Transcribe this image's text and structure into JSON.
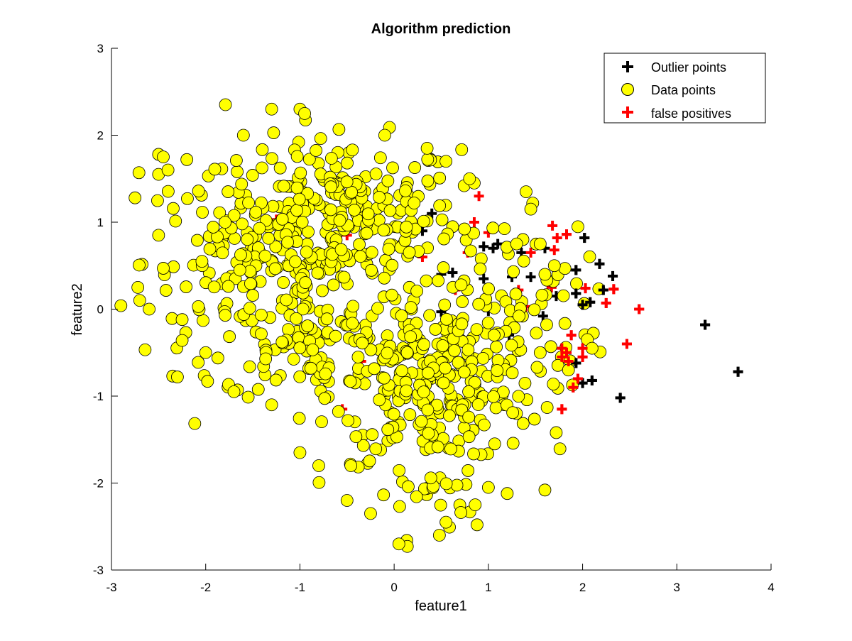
{
  "chart_data": {
    "type": "scatter",
    "title": "Algorithm prediction",
    "xlabel": "feature1",
    "ylabel": "feature2",
    "xlim": [
      -3,
      4
    ],
    "ylim": [
      -3,
      3
    ],
    "xticks": [
      "-3",
      "-2",
      "-1",
      "0",
      "1",
      "2",
      "3",
      "4"
    ],
    "yticks": [
      "-3",
      "-2",
      "-1",
      "0",
      "1",
      "2",
      "3"
    ],
    "grid": false,
    "legend": {
      "placement": "top-right",
      "entries": [
        {
          "name": "Outlier points",
          "marker": "plus",
          "color": "#000000"
        },
        {
          "name": "Data points",
          "marker": "circle",
          "color": "#ffff00"
        },
        {
          "name": "false positives",
          "marker": "plus",
          "color": "#ff0000"
        }
      ]
    },
    "series": [
      {
        "name": "Data points",
        "marker": "circle",
        "color": "#ffff00",
        "edge_color": "#000000",
        "clusters": [
          {
            "center": [
              -0.55,
              1.05
            ],
            "spread": [
              0.62,
              0.45
            ],
            "count": 260
          },
          {
            "center": [
              -1.55,
              0.55
            ],
            "spread": [
              0.55,
              0.55
            ],
            "count": 130
          },
          {
            "center": [
              0.45,
              -0.85
            ],
            "spread": [
              0.55,
              0.45
            ],
            "count": 270
          },
          {
            "center": [
              -0.9,
              -0.35
            ],
            "spread": [
              0.45,
              0.35
            ],
            "count": 90
          },
          {
            "center": [
              1.15,
              0.05
            ],
            "spread": [
              0.5,
              0.5
            ],
            "count": 70
          },
          {
            "center": [
              0.3,
              -1.95
            ],
            "spread": [
              0.35,
              0.35
            ],
            "count": 30
          }
        ],
        "points": [
          [
            -2.9,
            0.04
          ],
          [
            -2.72,
            0.25
          ],
          [
            -2.7,
            0.1
          ],
          [
            -2.6,
            0.0
          ],
          [
            -2.45,
            0.47
          ],
          [
            -2.5,
            0.85
          ],
          [
            -2.5,
            1.55
          ],
          [
            -2.5,
            1.78
          ],
          [
            -2.45,
            1.75
          ],
          [
            -2.4,
            1.6
          ],
          [
            -2.75,
            1.28
          ],
          [
            -2.2,
            1.72
          ],
          [
            -2.35,
            -0.77
          ],
          [
            -2.3,
            -0.78
          ],
          [
            -2.25,
            -0.36
          ],
          [
            -2.25,
            -0.12
          ],
          [
            -2.0,
            -0.5
          ],
          [
            -1.98,
            -0.83
          ],
          [
            -1.3,
            2.3
          ],
          [
            -1.0,
            2.3
          ],
          [
            -0.95,
            2.25
          ],
          [
            -0.1,
            2.0
          ],
          [
            -1.6,
            2.0
          ],
          [
            0.35,
            1.85
          ],
          [
            0.55,
            1.7
          ],
          [
            0.05,
            -2.7
          ],
          [
            0.48,
            -2.6
          ],
          [
            0.55,
            -2.45
          ],
          [
            0.88,
            -2.48
          ],
          [
            0.86,
            -2.25
          ],
          [
            1.0,
            -2.05
          ],
          [
            1.6,
            -2.08
          ],
          [
            1.2,
            -2.12
          ],
          [
            -0.5,
            -2.2
          ],
          [
            -0.25,
            -2.35
          ],
          [
            -0.8,
            -1.8
          ],
          [
            -1.0,
            -1.65
          ],
          [
            -1.3,
            -1.1
          ],
          [
            -1.7,
            -0.95
          ],
          [
            1.72,
            -1.42
          ],
          [
            1.55,
            -0.5
          ],
          [
            1.7,
            0.5
          ],
          [
            2.05,
            -0.35
          ],
          [
            2.1,
            -0.45
          ],
          [
            1.85,
            -0.7
          ],
          [
            1.6,
            0.4
          ],
          [
            1.4,
            1.35
          ],
          [
            1.45,
            1.15
          ],
          [
            1.3,
            0.75
          ],
          [
            1.55,
            0.75
          ],
          [
            0.85,
            1.45
          ],
          [
            0.8,
            1.5
          ]
        ]
      },
      {
        "name": "Outlier points",
        "marker": "plus",
        "color": "#000000",
        "points": [
          [
            3.65,
            -0.72
          ],
          [
            3.3,
            -0.18
          ],
          [
            2.4,
            -1.02
          ],
          [
            2.1,
            -0.82
          ],
          [
            2.0,
            -0.85
          ],
          [
            1.93,
            -0.62
          ],
          [
            2.0,
            0.05
          ],
          [
            2.08,
            0.08
          ],
          [
            2.22,
            0.22
          ],
          [
            2.32,
            0.38
          ],
          [
            2.18,
            0.52
          ],
          [
            1.93,
            0.45
          ],
          [
            2.02,
            0.82
          ],
          [
            1.93,
            0.18
          ],
          [
            1.7,
            0.3
          ],
          [
            1.72,
            0.15
          ],
          [
            1.45,
            0.37
          ],
          [
            1.25,
            0.37
          ],
          [
            1.6,
            0.7
          ],
          [
            1.58,
            -0.08
          ],
          [
            1.35,
            0.65
          ],
          [
            1.05,
            0.7
          ],
          [
            1.1,
            0.75
          ],
          [
            0.95,
            0.35
          ],
          [
            0.5,
            0.4
          ],
          [
            0.62,
            0.42
          ],
          [
            0.5,
            -0.03
          ],
          [
            1.0,
            -0.02
          ],
          [
            1.22,
            -0.3
          ],
          [
            0.4,
            1.1
          ],
          [
            0.3,
            0.9
          ],
          [
            0.95,
            0.72
          ]
        ]
      },
      {
        "name": "false positives",
        "marker": "plus",
        "color": "#ff0000",
        "points": [
          [
            2.6,
            0.0
          ],
          [
            2.47,
            -0.4
          ],
          [
            2.33,
            0.23
          ],
          [
            2.25,
            0.07
          ],
          [
            2.03,
            0.24
          ],
          [
            2.0,
            -0.45
          ],
          [
            2.0,
            -0.55
          ],
          [
            1.83,
            -0.5
          ],
          [
            1.78,
            -0.45
          ],
          [
            1.78,
            -0.55
          ],
          [
            1.88,
            -0.3
          ],
          [
            1.95,
            -0.8
          ],
          [
            1.9,
            -0.9
          ],
          [
            1.78,
            -1.15
          ],
          [
            1.85,
            -0.6
          ],
          [
            1.68,
            0.96
          ],
          [
            1.73,
            0.82
          ],
          [
            1.83,
            0.86
          ],
          [
            1.7,
            0.68
          ],
          [
            1.45,
            0.65
          ],
          [
            1.67,
            0.25
          ],
          [
            1.4,
            0.03
          ],
          [
            1.32,
            0.22
          ],
          [
            1.0,
            0.88
          ],
          [
            0.85,
            1.0
          ],
          [
            0.9,
            1.3
          ],
          [
            0.82,
            0.67
          ],
          [
            0.78,
            0.65
          ],
          [
            0.65,
            0.22
          ],
          [
            0.3,
            0.6
          ],
          [
            -0.35,
            -0.6
          ],
          [
            -0.55,
            -1.15
          ],
          [
            -0.5,
            0.85
          ],
          [
            -1.0,
            1.05
          ],
          [
            -1.25,
            1.03
          ],
          [
            -1.1,
            -0.38
          ],
          [
            -0.45,
            -0.2
          ]
        ]
      }
    ]
  }
}
